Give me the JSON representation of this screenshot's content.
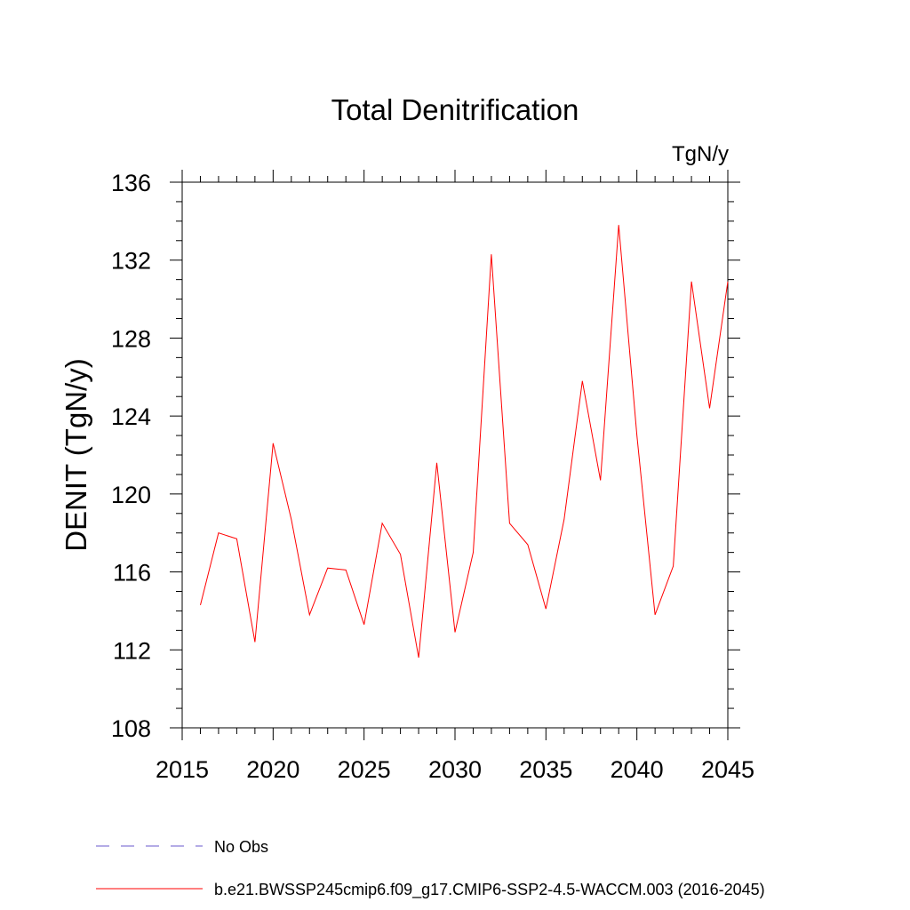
{
  "chart_data": {
    "type": "line",
    "title": "Total Denitrification",
    "units": "TgN/y",
    "ylabel": "DENIT  (TgN/y)",
    "xlabel": "",
    "xlim": [
      2015,
      2045
    ],
    "ylim": [
      108,
      136
    ],
    "xticks": [
      2015,
      2020,
      2025,
      2030,
      2035,
      2040,
      2045
    ],
    "yticks": [
      108,
      112,
      116,
      120,
      124,
      128,
      132,
      136
    ],
    "grid": false,
    "series": [
      {
        "name": "b.e21.BWSSP245cmip6.f09_g17.CMIP6-SSP2-4.5-WACCM.003 (2016-2045)",
        "color": "#ff0000",
        "x": [
          2016,
          2017,
          2018,
          2019,
          2020,
          2021,
          2022,
          2023,
          2024,
          2025,
          2026,
          2027,
          2028,
          2029,
          2030,
          2031,
          2032,
          2033,
          2034,
          2035,
          2036,
          2037,
          2038,
          2039,
          2040,
          2041,
          2042,
          2043,
          2044,
          2045
        ],
        "y": [
          114.3,
          118.0,
          117.7,
          112.4,
          122.6,
          118.7,
          113.8,
          116.2,
          116.1,
          113.3,
          118.5,
          116.9,
          111.6,
          121.6,
          112.9,
          117.0,
          132.3,
          118.5,
          117.4,
          114.1,
          118.7,
          125.8,
          120.7,
          133.8,
          123.0,
          113.8,
          116.3,
          130.9,
          124.4,
          130.9
        ]
      }
    ],
    "legend": [
      {
        "label": "No Obs",
        "color": "#6a5acd",
        "style": "dashed"
      },
      {
        "label": "b.e21.BWSSP245cmip6.f09_g17.CMIP6-SSP2-4.5-WACCM.003 (2016-2045)",
        "color": "#ff0000",
        "style": "solid"
      }
    ],
    "legend_position": "bottom-left"
  }
}
